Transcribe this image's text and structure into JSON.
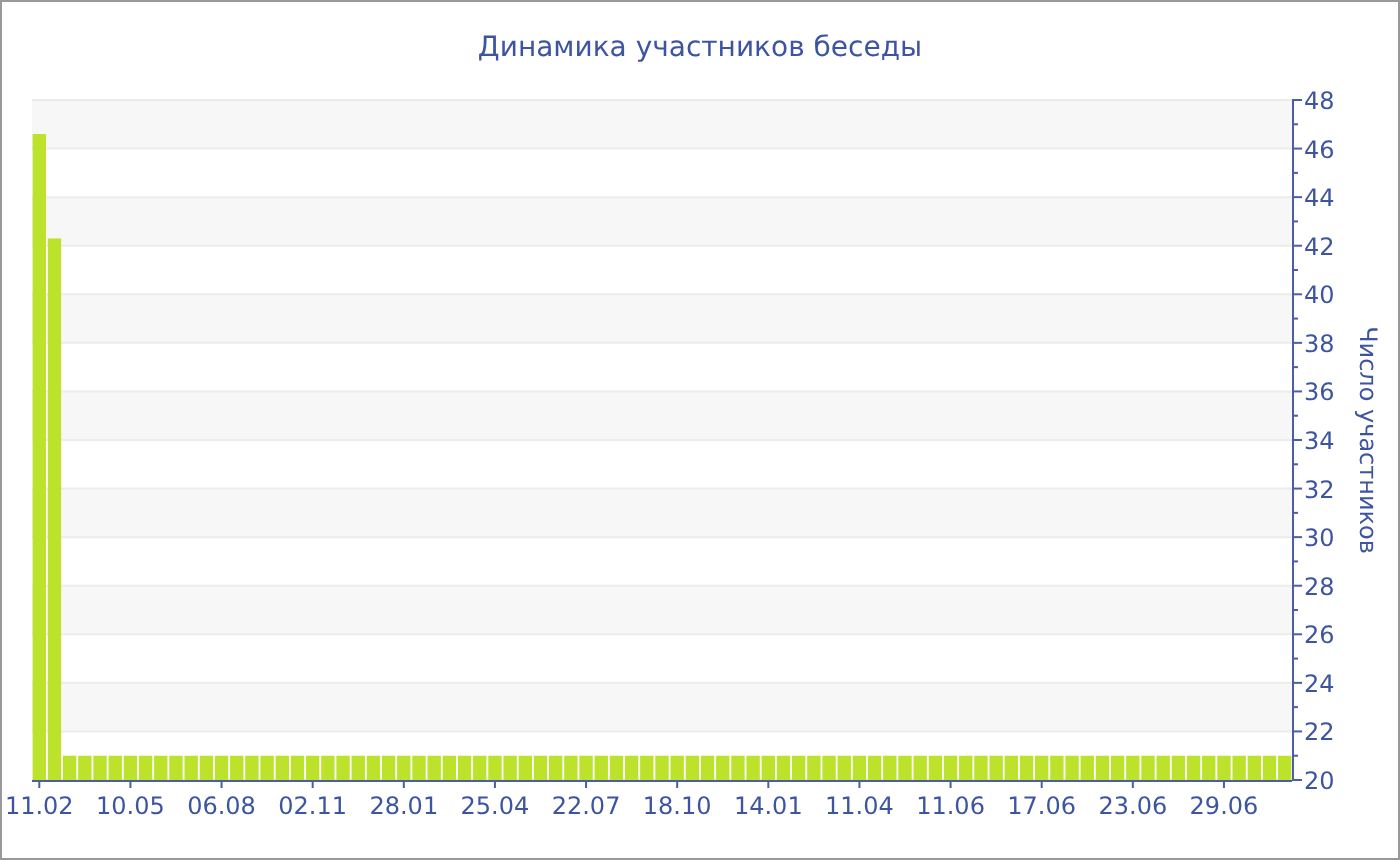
{
  "chart_data": {
    "type": "bar",
    "title": "Динамика участников беседы",
    "ylabel": "Число участников",
    "categories": [
      "11.02",
      null,
      null,
      null,
      null,
      null,
      "10.05",
      null,
      null,
      null,
      null,
      null,
      "06.08",
      null,
      null,
      null,
      null,
      null,
      "02.11",
      null,
      null,
      null,
      null,
      null,
      "28.01",
      null,
      null,
      null,
      null,
      null,
      "25.04",
      null,
      null,
      null,
      null,
      null,
      "22.07",
      null,
      null,
      null,
      null,
      null,
      "18.10",
      null,
      null,
      null,
      null,
      null,
      "14.01",
      null,
      null,
      null,
      null,
      null,
      "11.04",
      null,
      null,
      null,
      null,
      null,
      "11.06",
      null,
      null,
      null,
      null,
      null,
      "17.06",
      null,
      null,
      null,
      null,
      null,
      "23.06",
      null,
      null,
      null,
      null,
      null,
      "29.06",
      null,
      null,
      null,
      null
    ],
    "values": [
      46.6,
      42.3,
      21,
      21,
      21,
      21,
      21,
      21,
      21,
      21,
      21,
      21,
      21,
      21,
      21,
      21,
      21,
      21,
      21,
      21,
      21,
      21,
      21,
      21,
      21,
      21,
      21,
      21,
      21,
      21,
      21,
      21,
      21,
      21,
      21,
      21,
      21,
      21,
      21,
      21,
      21,
      21,
      21,
      21,
      21,
      21,
      21,
      21,
      21,
      21,
      21,
      21,
      21,
      21,
      21,
      21,
      21,
      21,
      21,
      21,
      21,
      21,
      21,
      21,
      21,
      21,
      21,
      21,
      21,
      21,
      21,
      21,
      21,
      21,
      21,
      21,
      21,
      21,
      21,
      21,
      21,
      21,
      21
    ],
    "color": "#bde22c",
    "ylim": [
      20,
      48
    ],
    "yticks": [
      20,
      22,
      24,
      26,
      28,
      30,
      32,
      34,
      36,
      38,
      40,
      42,
      44,
      46,
      48
    ],
    "grid": "y"
  }
}
